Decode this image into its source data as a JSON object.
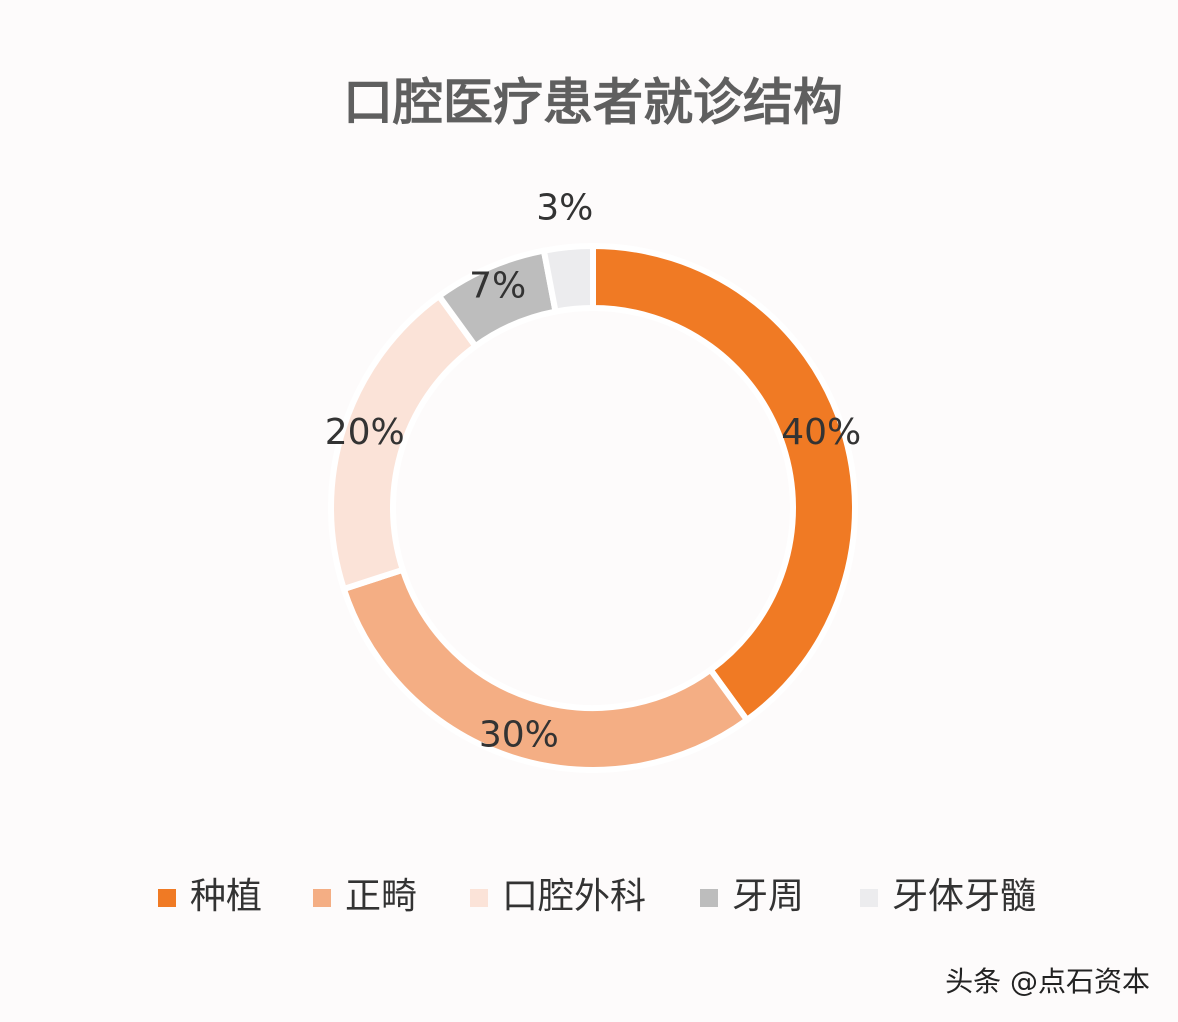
{
  "chart_data": {
    "type": "donut",
    "title": "口腔医疗患者就诊结构",
    "categories": [
      "种植",
      "正畸",
      "口腔外科",
      "牙周",
      "牙体牙髓"
    ],
    "values": [
      40,
      30,
      20,
      7,
      3
    ],
    "value_labels": [
      "40%",
      "30%",
      "20%",
      "7%",
      "3%"
    ],
    "colors": [
      "#f07a24",
      "#f4ae84",
      "#fbe3d8",
      "#bdbdbd",
      "#ececee"
    ],
    "legend": "bottom"
  },
  "watermark": "头条 @点石资本"
}
